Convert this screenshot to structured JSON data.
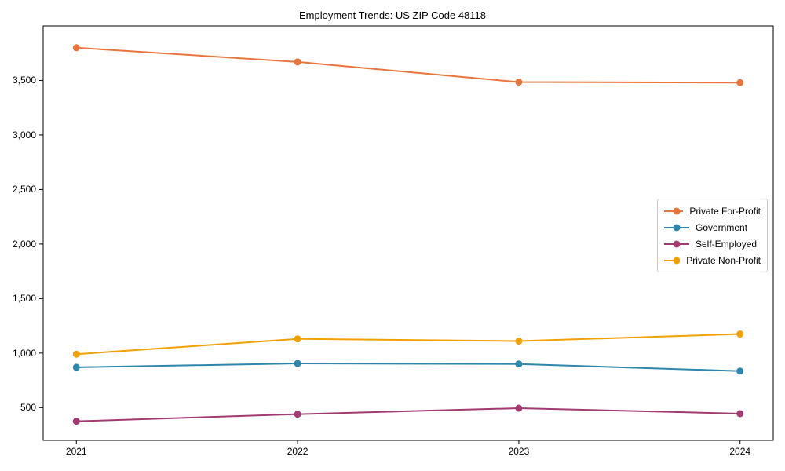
{
  "chart_data": {
    "type": "line",
    "title": "Employment Trends: US ZIP Code 48118",
    "xlabel": "",
    "ylabel": "",
    "categories": [
      "2021",
      "2022",
      "2023",
      "2024"
    ],
    "series": [
      {
        "name": "Private For-Profit",
        "color": "#E8763C",
        "values": [
          3800,
          3670,
          3485,
          3480
        ]
      },
      {
        "name": "Government",
        "color": "#2E86AB",
        "values": [
          870,
          905,
          900,
          835
        ]
      },
      {
        "name": "Self-Employed",
        "color": "#A23B72",
        "values": [
          375,
          440,
          495,
          445
        ]
      },
      {
        "name": "Private Non-Profit",
        "color": "#F2A104",
        "values": [
          990,
          1130,
          1110,
          1175
        ]
      }
    ],
    "yticks": [
      {
        "value": 500,
        "label": "500"
      },
      {
        "value": 1000,
        "label": "1,000"
      },
      {
        "value": 1500,
        "label": "1,500"
      },
      {
        "value": 2000,
        "label": "2,000"
      },
      {
        "value": 2500,
        "label": "2,500"
      },
      {
        "value": 3000,
        "label": "3,000"
      },
      {
        "value": 3500,
        "label": "3,500"
      }
    ],
    "ylim": [
      200,
      4000
    ],
    "x_margin": 0.15,
    "grid": false,
    "legend_position": "center right",
    "marker": "circle",
    "line_width": 2,
    "marker_radius": 4.5,
    "frame_color": "#000000",
    "background": "#ffffff"
  }
}
